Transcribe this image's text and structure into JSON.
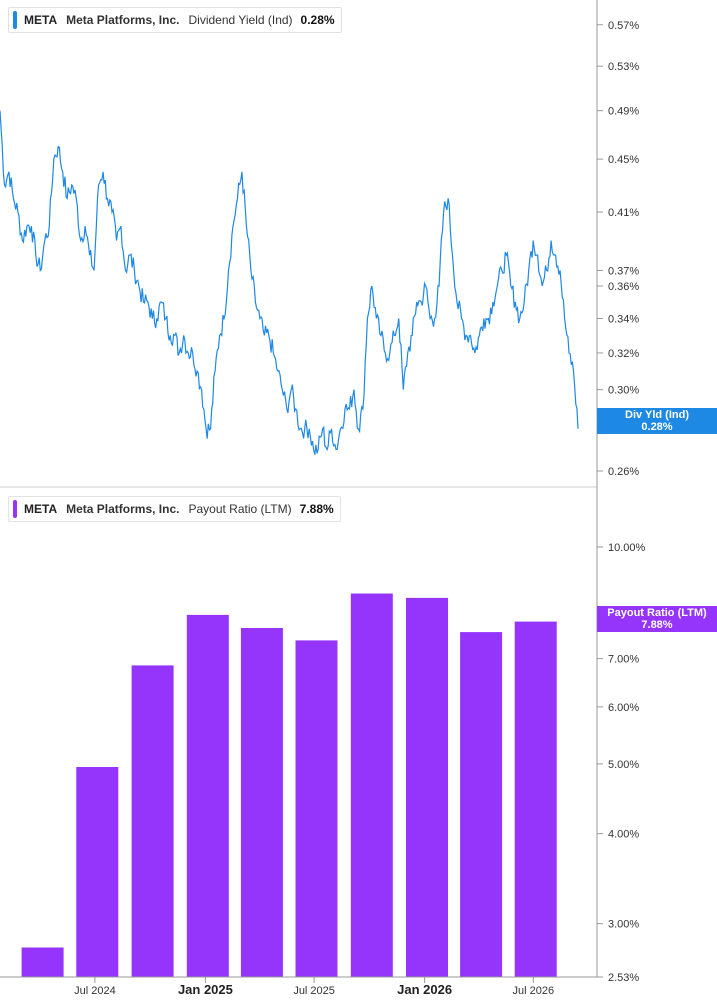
{
  "colors": {
    "yield_line": "#1e88e5",
    "payout_bar": "#9534fb",
    "axis": "#999999",
    "grid": "#e6e6e6"
  },
  "legend_top": {
    "ticker": "META",
    "company": "Meta Platforms, Inc.",
    "metric": "Dividend Yield (Ind)",
    "value": "0.28%"
  },
  "legend_bottom": {
    "ticker": "META",
    "company": "Meta Platforms, Inc.",
    "metric": "Payout Ratio (LTM)",
    "value": "7.88%"
  },
  "badge_top": {
    "label": "Div Yld (Ind)",
    "value": "0.28%"
  },
  "badge_bottom": {
    "label": "Payout Ratio (LTM)",
    "value": "7.88%"
  },
  "chart_data": [
    {
      "type": "line",
      "series": [
        {
          "name": "Dividend Yield (Ind)",
          "unit": "%",
          "values": [
            0.49,
            0.43,
            0.44,
            0.42,
            0.41,
            0.39,
            0.4,
            0.4,
            0.38,
            0.37,
            0.39,
            0.4,
            0.45,
            0.46,
            0.44,
            0.42,
            0.43,
            0.42,
            0.39,
            0.4,
            0.38,
            0.37,
            0.43,
            0.44,
            0.42,
            0.41,
            0.39,
            0.4,
            0.37,
            0.38,
            0.37,
            0.36,
            0.35,
            0.35,
            0.34,
            0.34,
            0.35,
            0.34,
            0.33,
            0.33,
            0.32,
            0.33,
            0.32,
            0.32,
            0.31,
            0.3,
            0.28,
            0.28,
            0.31,
            0.33,
            0.34,
            0.37,
            0.4,
            0.42,
            0.44,
            0.4,
            0.37,
            0.35,
            0.34,
            0.33,
            0.33,
            0.32,
            0.31,
            0.3,
            0.29,
            0.3,
            0.29,
            0.28,
            0.28,
            0.28,
            0.27,
            0.27,
            0.28,
            0.27,
            0.28,
            0.27,
            0.28,
            0.29,
            0.29,
            0.3,
            0.28,
            0.29,
            0.34,
            0.36,
            0.34,
            0.33,
            0.32,
            0.32,
            0.33,
            0.34,
            0.3,
            0.32,
            0.33,
            0.35,
            0.35,
            0.36,
            0.34,
            0.34,
            0.36,
            0.41,
            0.42,
            0.38,
            0.35,
            0.34,
            0.33,
            0.33,
            0.32,
            0.33,
            0.34,
            0.34,
            0.35,
            0.36,
            0.37,
            0.38,
            0.36,
            0.35,
            0.34,
            0.35,
            0.37,
            0.39,
            0.38,
            0.36,
            0.37,
            0.39,
            0.38,
            0.37,
            0.34,
            0.32,
            0.31,
            0.28
          ]
        }
      ],
      "y_ticks": [
        "0.57%",
        "0.53%",
        "0.49%",
        "0.45%",
        "0.41%",
        "0.37%",
        "0.36%",
        "0.34%",
        "0.32%",
        "0.30%",
        "0.28%",
        "0.26%"
      ],
      "ylim": [
        0.255,
        0.585
      ],
      "y_scale": "log",
      "grid": false
    },
    {
      "type": "bar",
      "series": [
        {
          "name": "Payout Ratio (LTM)",
          "unit": "%",
          "x": [
            "2024-03-31",
            "2024-06-30",
            "2024-09-30",
            "2024-12-31",
            "2025-03-31",
            "2025-06-30",
            "2025-09-30",
            "2025-12-31",
            "2026-03-31",
            "2026-06-30"
          ],
          "values": [
            2.78,
            4.95,
            6.85,
            8.05,
            7.72,
            7.42,
            8.62,
            8.5,
            7.62,
            7.88
          ]
        }
      ],
      "y_ticks": [
        "10.00%",
        "7.00%",
        "6.00%",
        "5.00%",
        "4.00%",
        "3.00%",
        "2.53%"
      ],
      "ylim": [
        2.53,
        12.0
      ],
      "y_scale": "log",
      "x_ticks": [
        {
          "date": "2024-07-01",
          "label": "Jul 2024",
          "major": false
        },
        {
          "date": "2025-01-01",
          "label": "Jan 2025",
          "major": true
        },
        {
          "date": "2025-07-01",
          "label": "Jul 2025",
          "major": false
        },
        {
          "date": "2026-01-01",
          "label": "Jan 2026",
          "major": true
        },
        {
          "date": "2026-07-01",
          "label": "Jul 2026",
          "major": false
        }
      ],
      "grid": false
    }
  ]
}
